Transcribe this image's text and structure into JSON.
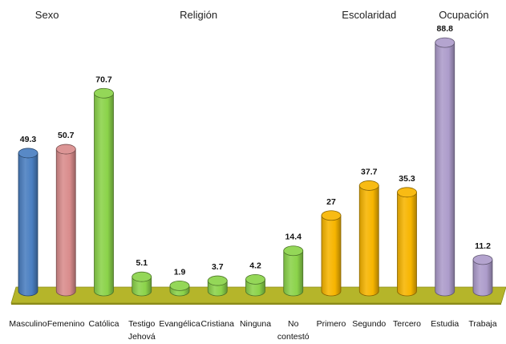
{
  "chart_data": {
    "type": "bar",
    "style": "3d-cylinder",
    "groups": [
      {
        "label": "Sexo",
        "span": [
          0,
          1
        ]
      },
      {
        "label": "Religión",
        "span": [
          2,
          7
        ]
      },
      {
        "label": "Escolaridad",
        "span": [
          8,
          10
        ]
      },
      {
        "label": "Ocupación",
        "span": [
          11,
          12
        ]
      }
    ],
    "categories": [
      [
        "Masculino"
      ],
      [
        "Femenino"
      ],
      [
        "Católica"
      ],
      [
        "Testigo",
        "Jehová"
      ],
      [
        "Evangélica"
      ],
      [
        "Cristiana"
      ],
      [
        "Ninguna"
      ],
      [
        "No",
        "contestó"
      ],
      [
        "Primero"
      ],
      [
        "Segundo"
      ],
      [
        "Tercero"
      ],
      [
        "Estudia"
      ],
      [
        "Trabaja"
      ]
    ],
    "values": [
      49.3,
      50.7,
      70.7,
      5.1,
      1.9,
      3.7,
      4.2,
      14.4,
      27,
      37.7,
      35.3,
      88.8,
      11.2
    ],
    "value_labels": [
      "49.3",
      "50.7",
      "70.7",
      "5.1",
      "1.9",
      "3.7",
      "4.2",
      "14.4",
      "27",
      "37.7",
      "35.3",
      "88.8",
      "11.2"
    ],
    "colors": [
      "#4a7fc1",
      "#d98c8c",
      "#8bd34a",
      "#8bd34a",
      "#8bd34a",
      "#8bd34a",
      "#8bd34a",
      "#8bd34a",
      "#f7b500",
      "#f7b500",
      "#f7b500",
      "#ad9ccb",
      "#ad9ccb"
    ],
    "floor_color": "#b5b52a",
    "grid": false,
    "legend": "none"
  }
}
